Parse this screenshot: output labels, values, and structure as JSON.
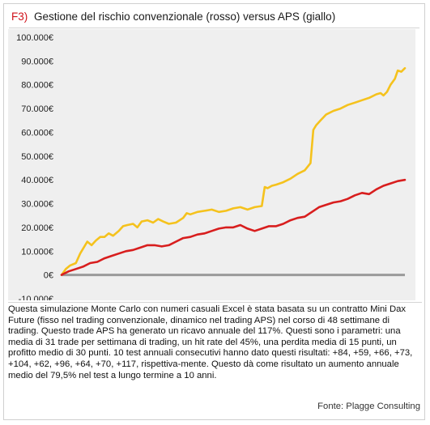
{
  "header": {
    "tag": "F3)",
    "title": "Gestione del rischio convenzionale (rosso) versus APS (giallo)"
  },
  "caption": {
    "text": "Questa simulazione Monte Carlo con numeri casuali Excel è stata basata su un contratto Mini Dax Future (fisso nel trading convenzionale, dinamico nel trading APS) nel corso di 48 settimane di trading. Questo trade APS ha generato un ricavo annuale del 117%. Questi sono i parametri: una media di 31 trade per settimana di trading, un hit rate del 45%, una perdita media di 15 punti, un profitto medio di 30 punti. 10 test annuali consecutivi hanno dato questi risultati: +84, +59, +66, +73, +104, +62, +96, +64, +70, +117, rispettiva-mente. Questo dà come risultato un aumento annuale medio del 79,5% nel test a lungo termine a 10 anni.",
    "source": "Fonte: Plagge Consulting"
  },
  "chart_data": {
    "type": "line",
    "ylim": [
      -10000,
      100000
    ],
    "yticks": [
      -10000,
      0,
      10000,
      20000,
      30000,
      40000,
      50000,
      60000,
      70000,
      80000,
      90000,
      100000
    ],
    "ytick_labels": [
      "-10.000€",
      "0€",
      "10.000€",
      "20.000€",
      "30.000€",
      "40.000€",
      "50.000€",
      "60.000€",
      "70.000€",
      "80.000€",
      "90.000€",
      "100.000€"
    ],
    "xlim": [
      0,
      48
    ],
    "grid": false,
    "legend": "none",
    "series": [
      {
        "color": "#f5c21d",
        "x": [
          0,
          0.6,
          1.2,
          2,
          2.6,
          3,
          3.6,
          4.2,
          4.8,
          5.4,
          6,
          6.6,
          7.2,
          8,
          8.6,
          9.2,
          10,
          10.6,
          11.2,
          12,
          12.8,
          13.5,
          14.2,
          15,
          16,
          17,
          17.5,
          18,
          19,
          20,
          21,
          22,
          23,
          24,
          25,
          26,
          27,
          28,
          28.4,
          28.8,
          29.4,
          30,
          31,
          32,
          33,
          34,
          34.8,
          35.2,
          35.6,
          36.2,
          37,
          38,
          39,
          40,
          41,
          42,
          43,
          44,
          44.6,
          45,
          45.5,
          46,
          46.6,
          47,
          47.5,
          48
        ],
        "values": [
          0,
          2500,
          4000,
          5000,
          9000,
          11000,
          14000,
          12500,
          14500,
          16000,
          16000,
          17500,
          16500,
          18500,
          20500,
          21000,
          21500,
          20000,
          22500,
          23000,
          22000,
          23500,
          22500,
          21500,
          22000,
          24000,
          26000,
          25500,
          26500,
          27000,
          27500,
          26500,
          27000,
          28000,
          28500,
          27500,
          28500,
          29000,
          37000,
          36500,
          37500,
          38000,
          39000,
          40500,
          42500,
          44000,
          47000,
          61000,
          63000,
          65000,
          67500,
          69000,
          70000,
          71500,
          72500,
          73500,
          74500,
          76000,
          76500,
          75500,
          77000,
          80000,
          82500,
          86000,
          85500,
          87000
        ]
      },
      {
        "color": "#d81e1e",
        "x": [
          0,
          1,
          2,
          3,
          4,
          5,
          6,
          7,
          8,
          9,
          10,
          11,
          12,
          13,
          14,
          15,
          16,
          17,
          18,
          19,
          20,
          21,
          22,
          23,
          24,
          25,
          26,
          27,
          28,
          29,
          30,
          31,
          32,
          33,
          34,
          35,
          36,
          37,
          38,
          39,
          40,
          41,
          42,
          43,
          44,
          45,
          46,
          47,
          48
        ],
        "values": [
          0,
          1500,
          2500,
          3500,
          5000,
          5500,
          7000,
          8000,
          9000,
          10000,
          10500,
          11500,
          12500,
          12500,
          12000,
          12500,
          14000,
          15500,
          16000,
          17000,
          17500,
          18500,
          19500,
          20000,
          20000,
          21000,
          19500,
          18500,
          19500,
          20500,
          20500,
          21500,
          23000,
          24000,
          24500,
          26500,
          28500,
          29500,
          30500,
          31000,
          32000,
          33500,
          34500,
          34000,
          36000,
          37500,
          38500,
          39500,
          40000
        ]
      }
    ],
    "zero_line_color": "#9a9a9a"
  }
}
